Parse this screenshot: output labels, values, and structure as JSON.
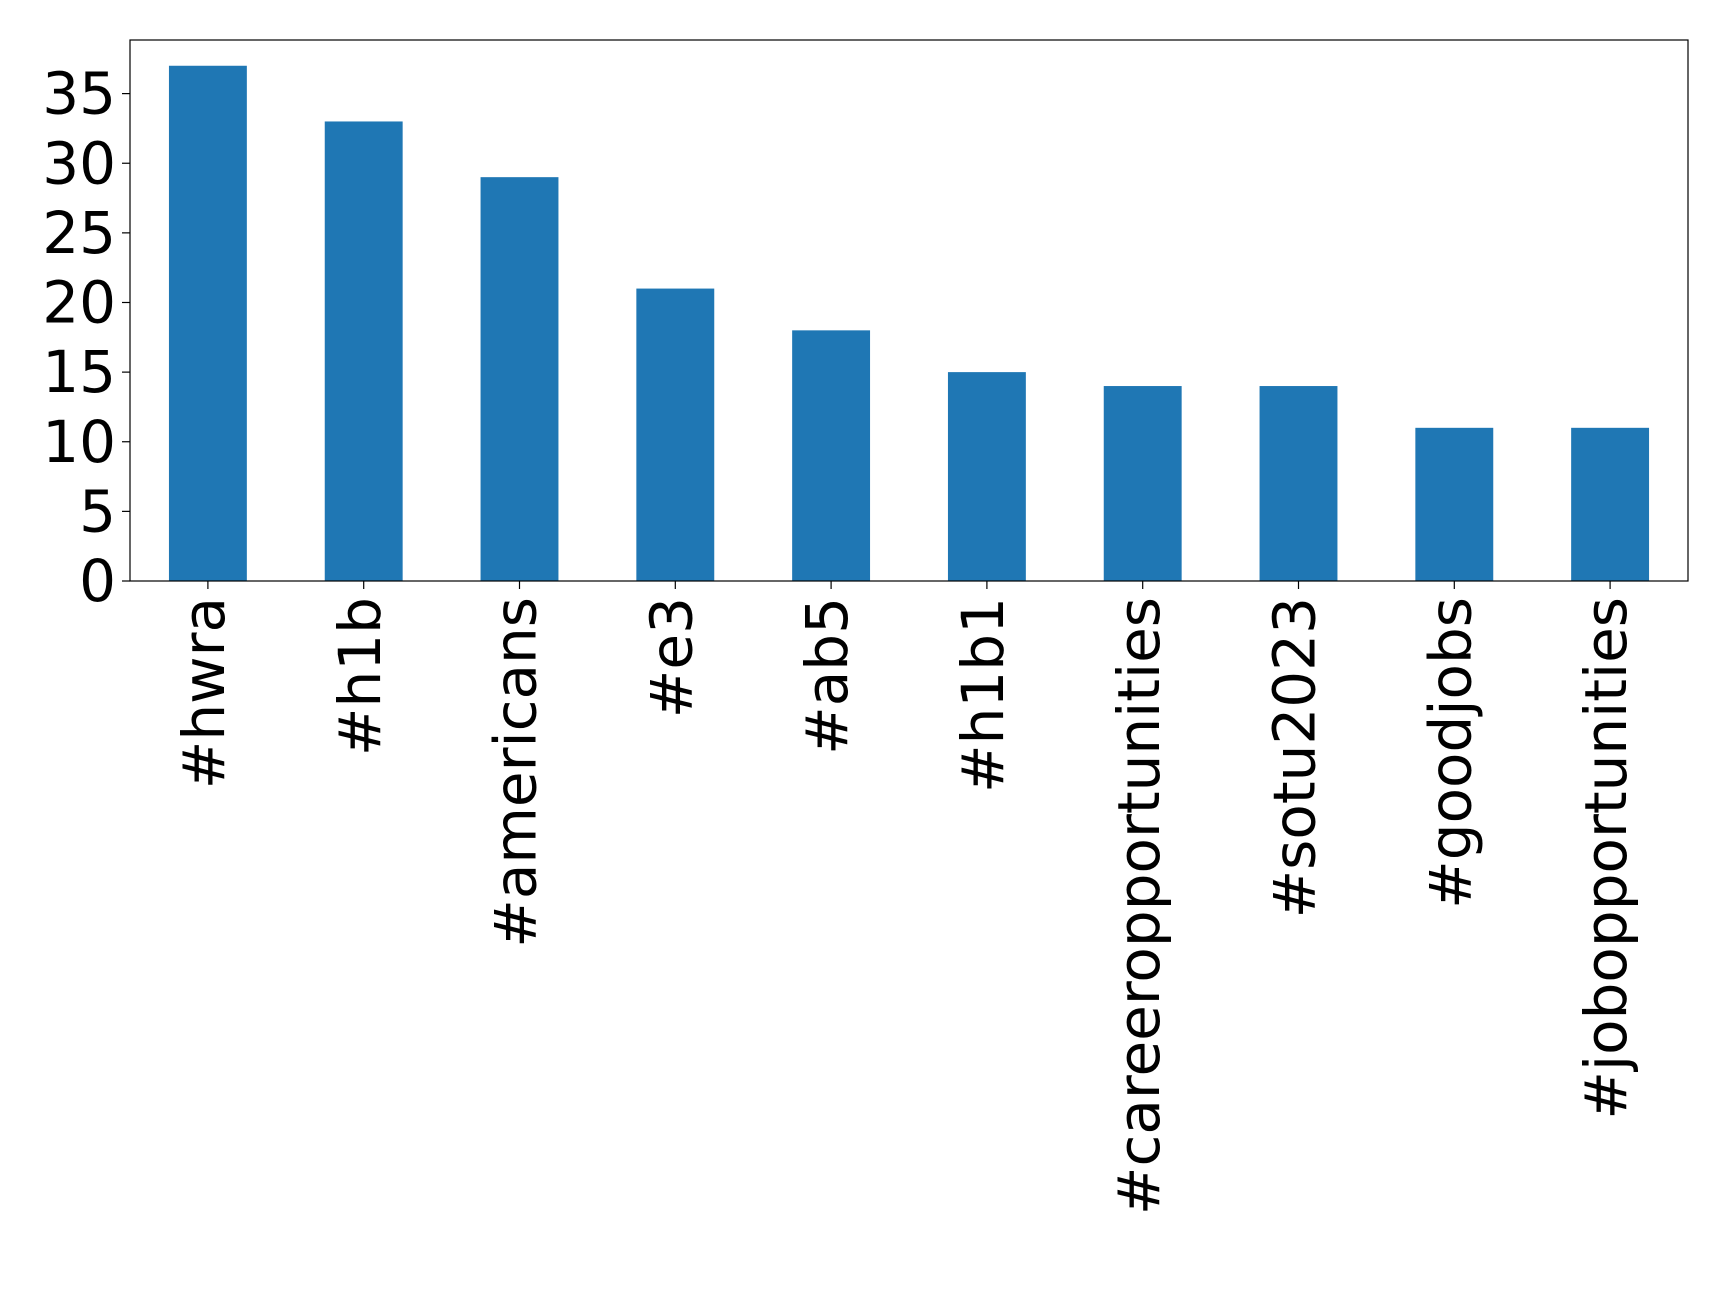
{
  "chart_data": {
    "type": "bar",
    "categories": [
      "#hwra",
      "#h1b",
      "#americans",
      "#e3",
      "#ab5",
      "#h1b1",
      "#careeropportunities",
      "#sotu2023",
      "#goodjobs",
      "#jobopportunities"
    ],
    "values": [
      37,
      33,
      29,
      21,
      18,
      15,
      14,
      14,
      11,
      11
    ],
    "color": "#1f77b4",
    "ylim": [
      0,
      38.85
    ],
    "yticks": [
      0,
      5,
      10,
      15,
      20,
      25,
      30,
      35
    ],
    "grid": false
  }
}
